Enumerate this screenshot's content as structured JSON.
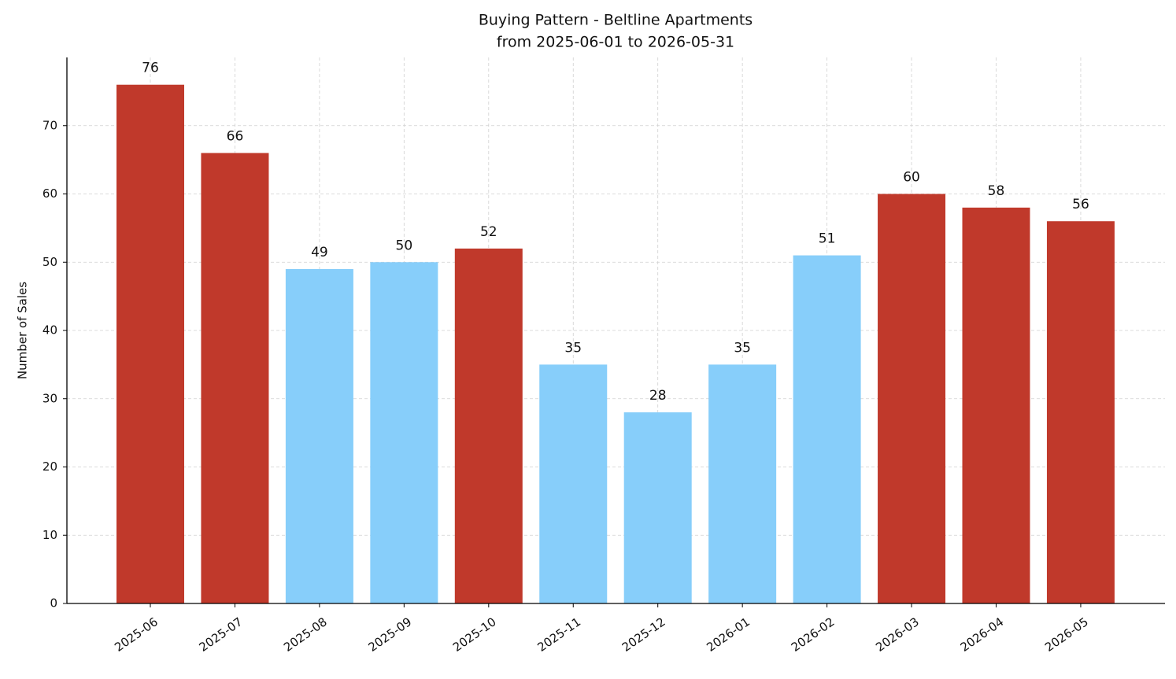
{
  "chart_data": {
    "type": "bar",
    "title": "Buying Pattern - Beltline Apartments",
    "subtitle": "from 2025-06-01 to 2026-05-31",
    "y_label": "Number of Sales",
    "categories": [
      "2025-06",
      "2025-07",
      "2025-08",
      "2025-09",
      "2025-10",
      "2025-11",
      "2025-12",
      "2026-01",
      "2026-02",
      "2026-03",
      "2026-04",
      "2026-05"
    ],
    "values": [
      76,
      66,
      49,
      50,
      52,
      35,
      28,
      35,
      51,
      60,
      58,
      56
    ],
    "colors": [
      "#c0392b",
      "#c0392b",
      "#87cefa",
      "#87cefa",
      "#c0392b",
      "#87cefa",
      "#87cefa",
      "#87cefa",
      "#87cefa",
      "#c0392b",
      "#c0392b",
      "#c0392b"
    ],
    "ylim": [
      0,
      80
    ],
    "yticks": [
      0,
      10,
      20,
      30,
      40,
      50,
      60,
      70
    ],
    "grid": true
  }
}
